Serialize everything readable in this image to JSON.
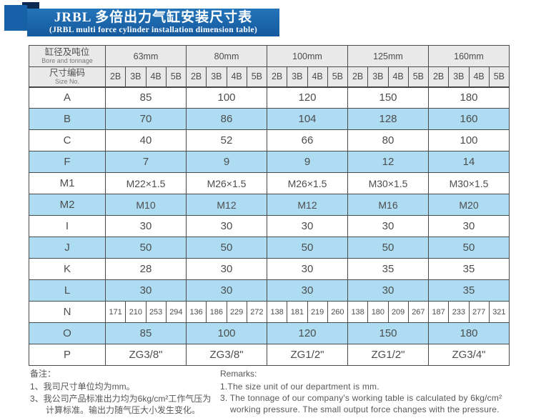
{
  "title": {
    "line1": "JRBL 多倍出力气缸安装尺寸表",
    "line2": "(JRBL multi force cylinder installation dimension table)"
  },
  "table": {
    "header": {
      "col1_cn": "缸径及吨位",
      "col1_en": "Bore and tonnage",
      "col2_cn": "尺寸编码",
      "col2_en": "Size No.",
      "sizes": [
        "63mm",
        "80mm",
        "100mm",
        "125mm",
        "160mm"
      ],
      "size_codes": [
        "2B",
        "3B",
        "4B",
        "5B"
      ]
    },
    "rows": [
      {
        "label": "A",
        "type": "merged",
        "values": [
          "85",
          "100",
          "120",
          "150",
          "180"
        ]
      },
      {
        "label": "B",
        "type": "merged",
        "values": [
          "70",
          "86",
          "104",
          "128",
          "160"
        ]
      },
      {
        "label": "C",
        "type": "merged",
        "values": [
          "40",
          "52",
          "66",
          "80",
          "100"
        ]
      },
      {
        "label": "F",
        "type": "merged",
        "values": [
          "7",
          "9",
          "9",
          "12",
          "14"
        ]
      },
      {
        "label": "M1",
        "type": "merged",
        "values": [
          "M22×1.5",
          "M26×1.5",
          "M26×1.5",
          "M30×1.5",
          "M30×1.5"
        ]
      },
      {
        "label": "M2",
        "type": "merged",
        "values": [
          "M10",
          "M12",
          "M12",
          "M16",
          "M20"
        ]
      },
      {
        "label": "I",
        "type": "merged",
        "values": [
          "30",
          "30",
          "30",
          "30",
          "30"
        ]
      },
      {
        "label": "J",
        "type": "merged",
        "values": [
          "50",
          "50",
          "50",
          "50",
          "50"
        ]
      },
      {
        "label": "K",
        "type": "merged",
        "values": [
          "28",
          "30",
          "30",
          "35",
          "35"
        ]
      },
      {
        "label": "L",
        "type": "merged",
        "values": [
          "30",
          "30",
          "30",
          "30",
          "35"
        ]
      },
      {
        "label": "N",
        "type": "per_column",
        "values": [
          "171",
          "210",
          "253",
          "294",
          "136",
          "186",
          "229",
          "272",
          "138",
          "181",
          "219",
          "260",
          "138",
          "180",
          "209",
          "267",
          "187",
          "233",
          "277",
          "321"
        ]
      },
      {
        "label": "O",
        "type": "merged",
        "values": [
          "85",
          "100",
          "120",
          "150",
          "180"
        ]
      },
      {
        "label": "P",
        "type": "merged",
        "values": [
          "ZG3/8\"",
          "ZG3/8\"",
          "ZG1/2\"",
          "ZG1/2\"",
          "ZG3/4\""
        ]
      }
    ]
  },
  "remarks": {
    "cn_title": "备注：",
    "cn_items": [
      "1、我司尺寸单位均为mm。",
      "3、我公司产品标准出力均为6kg/cm²工作气压为计算标准。输出力随气压大小发生变化。"
    ],
    "en_title": "Remarks:",
    "en_items": [
      "1.The size unit of our department is mm.",
      "3. The tonnage of our company's working table is calculated by 6kg/cm² working pressure. The small output force changes with the pressure."
    ]
  },
  "colors": {
    "banner_blue": "#1661a8",
    "fold_navy": "#0d2b52",
    "row_blue": "#aedcf3",
    "header_gray": "#e9e9e9",
    "border": "#4a4a4a",
    "text_gray": "#4d4d4d"
  }
}
